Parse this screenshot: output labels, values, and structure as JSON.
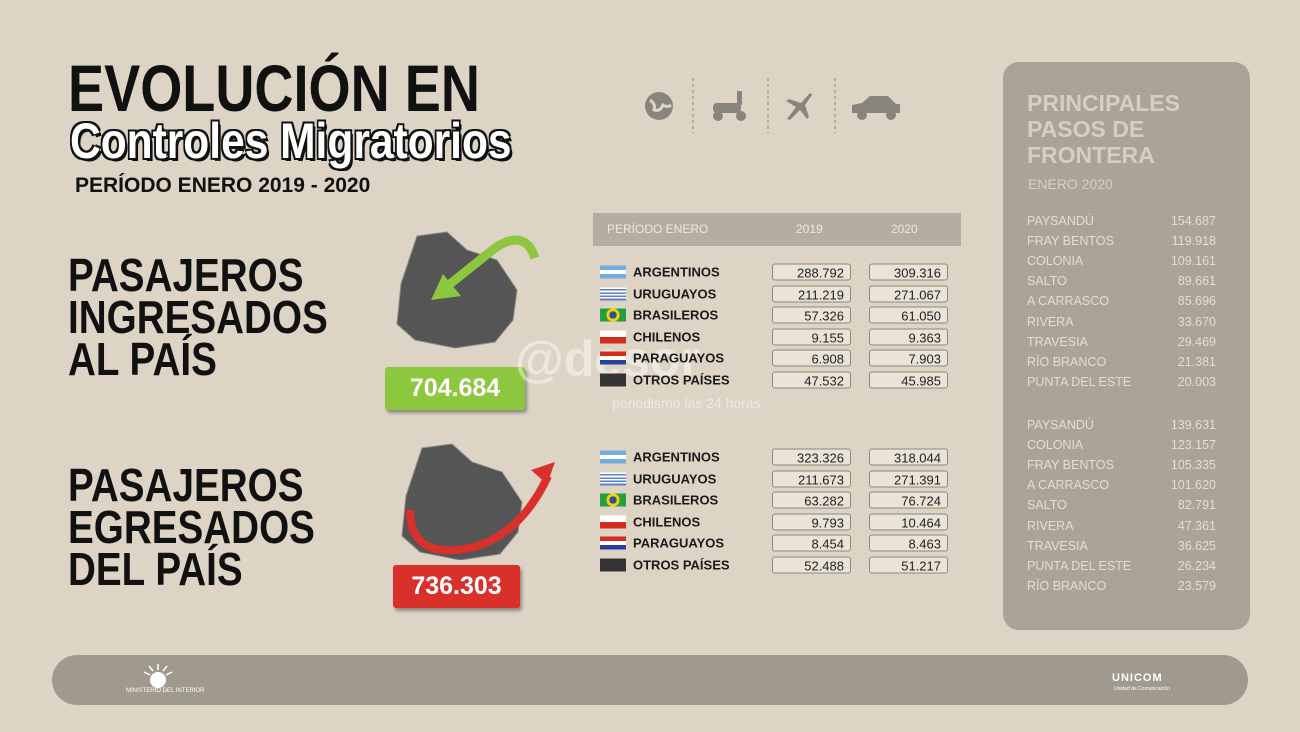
{
  "header": {
    "title_line1": "EVOLUCIÓN EN",
    "title_line2": "Controles Migratorios",
    "period": "PERÍODO ENERO 2019 - 2020"
  },
  "table_header": {
    "period": "PERÍODO ENERO",
    "col1": "2019",
    "col2": "2020"
  },
  "ingresados": {
    "label": [
      "PASAJEROS",
      "INGRESADOS",
      "AL PAÍS"
    ],
    "total": "704.684",
    "rows": [
      {
        "country": "ARGENTINOS",
        "v2019": "288.792",
        "v2020": "309.316"
      },
      {
        "country": "URUGUAYOS",
        "v2019": "211.219",
        "v2020": "271.067"
      },
      {
        "country": "BRASILEROS",
        "v2019": "57.326",
        "v2020": "61.050"
      },
      {
        "country": "CHILENOS",
        "v2019": "9.155",
        "v2020": "9.363"
      },
      {
        "country": "PARAGUAYOS",
        "v2019": "6.908",
        "v2020": "7.903"
      },
      {
        "country": "OTROS PAÍSES",
        "v2019": "47.532",
        "v2020": "45.985"
      }
    ]
  },
  "egresados": {
    "label": [
      "PASAJEROS",
      "EGRESADOS",
      "DEL PAÍS"
    ],
    "total": "736.303",
    "rows": [
      {
        "country": "ARGENTINOS",
        "v2019": "323.326",
        "v2020": "318.044"
      },
      {
        "country": "URUGUAYOS",
        "v2019": "211.673",
        "v2020": "271.391"
      },
      {
        "country": "BRASILEROS",
        "v2019": "63.282",
        "v2020": "76.724"
      },
      {
        "country": "CHILENOS",
        "v2019": "9.793",
        "v2020": "10.464"
      },
      {
        "country": "PARAGUAYOS",
        "v2019": "8.454",
        "v2020": "8.463"
      },
      {
        "country": "OTROS PAÍSES",
        "v2019": "52.488",
        "v2020": "51.217"
      }
    ]
  },
  "frontera": {
    "title": [
      "PRINCIPALES",
      "PASOS DE",
      "FRONTERA"
    ],
    "subtitle": "ENERO 2020",
    "ingresos": [
      {
        "name": "PAYSANDÚ",
        "value": "154.687"
      },
      {
        "name": "FRAY BENTOS",
        "value": "119.918"
      },
      {
        "name": "COLONIA",
        "value": "109.161"
      },
      {
        "name": "SALTO",
        "value": "89.661"
      },
      {
        "name": "A CARRASCO",
        "value": "85.696"
      },
      {
        "name": "RIVERA",
        "value": "33.670"
      },
      {
        "name": "TRAVESIA",
        "value": "29.469"
      },
      {
        "name": "RÍO BRANCO",
        "value": "21.381"
      },
      {
        "name": "PUNTA DEL ESTE",
        "value": "20.003"
      }
    ],
    "egresos": [
      {
        "name": "PAYSANDÚ",
        "value": "139.631"
      },
      {
        "name": "COLONIA",
        "value": "123.157"
      },
      {
        "name": "FRAY BENTOS",
        "value": "105.335"
      },
      {
        "name": "A CARRASCO",
        "value": "101.620"
      },
      {
        "name": "SALTO",
        "value": "82.791"
      },
      {
        "name": "RIVERA",
        "value": "47.361"
      },
      {
        "name": "TRAVESIA",
        "value": "36.625"
      },
      {
        "name": "PUNTA DEL ESTE",
        "value": "26.234"
      },
      {
        "name": "RÍO BRANCO",
        "value": "23.579"
      }
    ]
  },
  "watermark": {
    "brand": "@desor",
    "tagline": "periodismo las 24 horas"
  },
  "footer": {
    "left": "MINISTERIO DEL INTERIOR",
    "right": "UNICOM",
    "right_sub": "Unidad de Comunicación"
  }
}
